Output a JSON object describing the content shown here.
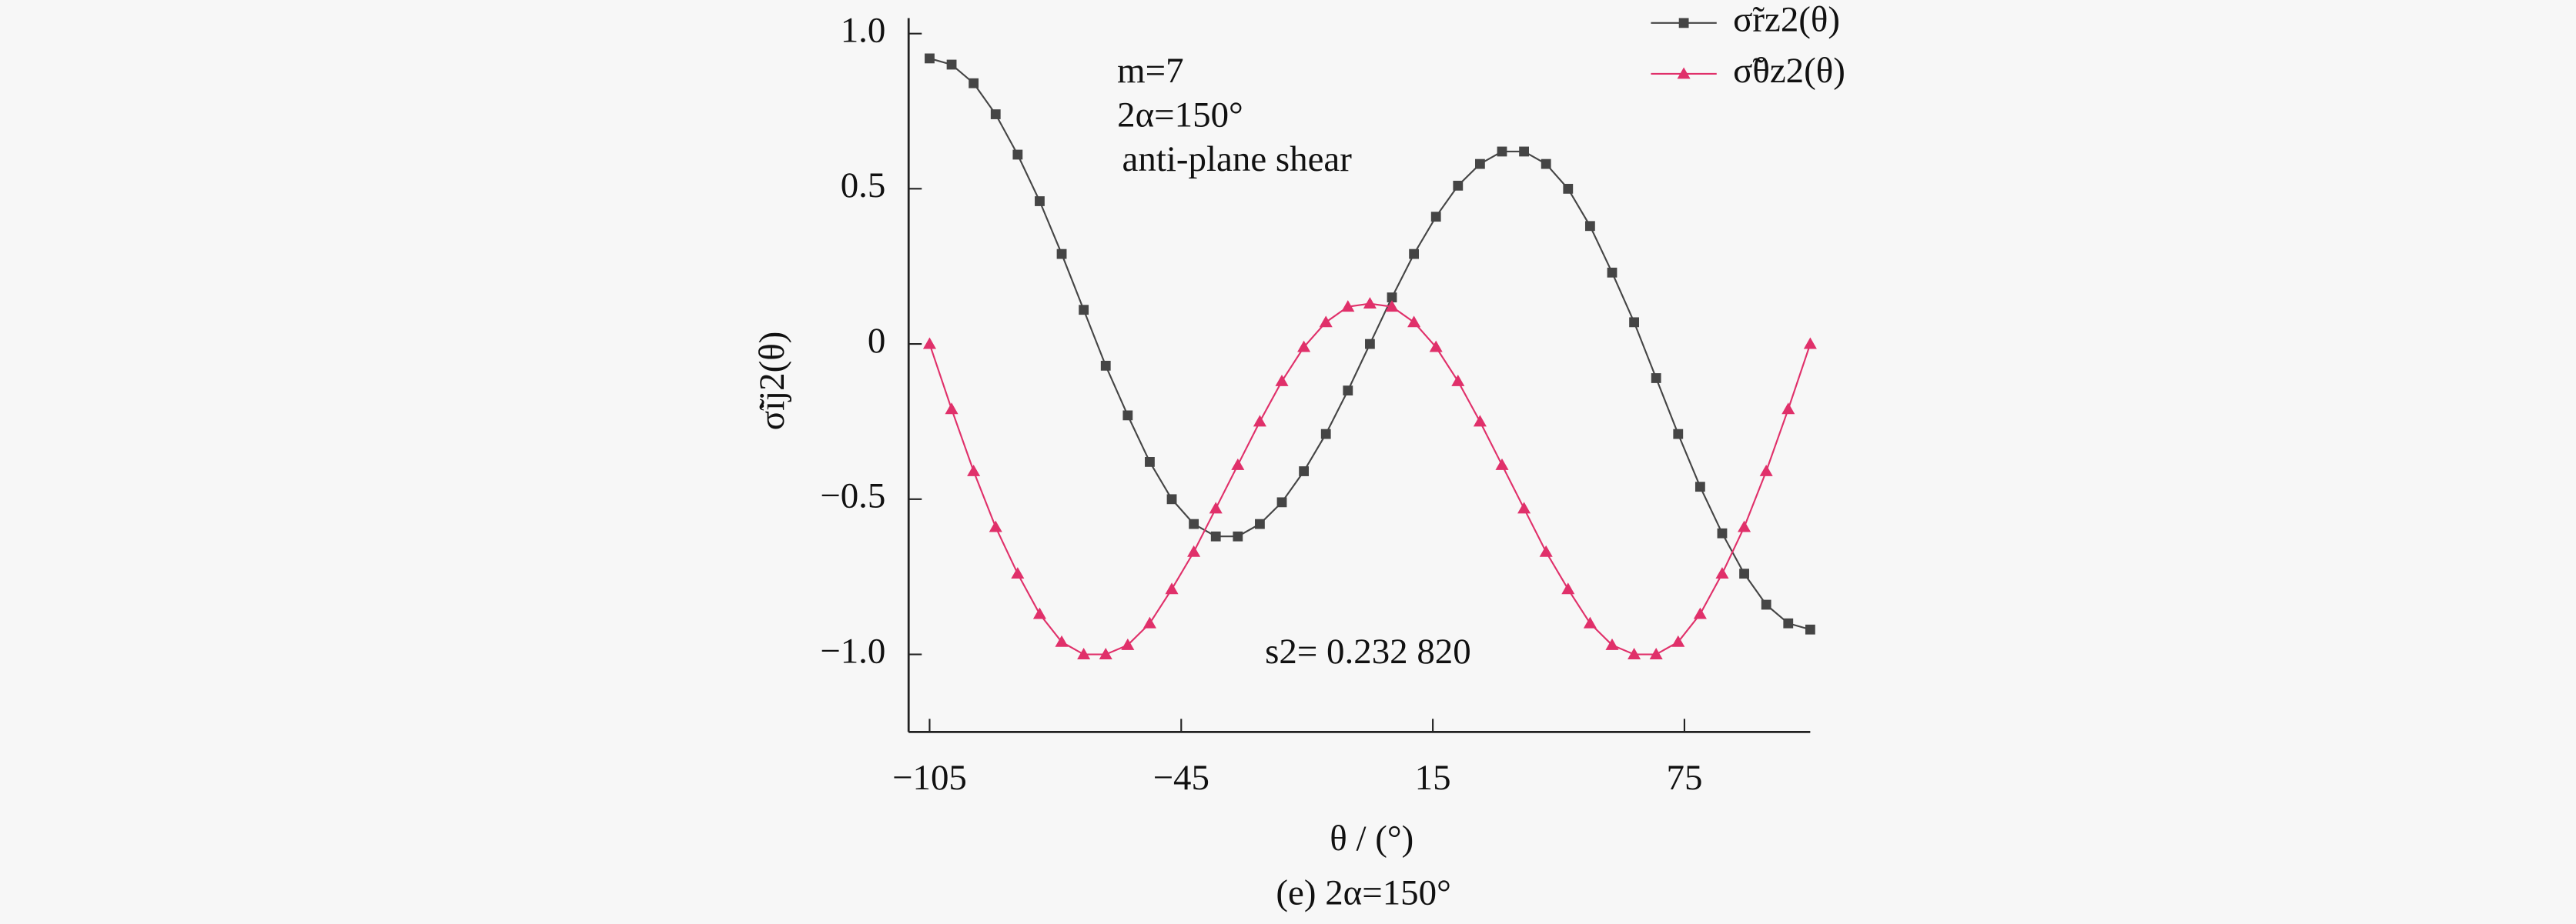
{
  "chart_data": {
    "type": "line",
    "x": [
      -105,
      -99.75,
      -94.5,
      -89.25,
      -84,
      -78.75,
      -73.5,
      -68.25,
      -63,
      -57.75,
      -52.5,
      -47.25,
      -42,
      -36.75,
      -31.5,
      -26.25,
      -21,
      -15.75,
      -10.5,
      -5.25,
      0,
      5.25,
      10.5,
      15.75,
      21,
      26.25,
      31.5,
      36.75,
      42,
      47.25,
      52.5,
      57.75,
      63,
      68.25,
      73.5,
      78.75,
      84,
      89.25,
      94.5,
      99.75,
      105
    ],
    "series": [
      {
        "name": "σ̃rz2(θ)",
        "color": "#454545",
        "marker": "square",
        "values": [
          0.92,
          0.9,
          0.84,
          0.74,
          0.61,
          0.46,
          0.29,
          0.11,
          -0.07,
          -0.23,
          -0.38,
          -0.5,
          -0.58,
          -0.62,
          -0.62,
          -0.58,
          -0.51,
          -0.41,
          -0.29,
          -0.15,
          0,
          0.15,
          0.29,
          0.41,
          0.51,
          0.58,
          0.62,
          0.62,
          0.58,
          0.5,
          0.38,
          0.23,
          0.07,
          -0.11,
          -0.29,
          -0.46,
          -0.61,
          -0.74,
          -0.84,
          -0.9,
          -0.92
        ]
      },
      {
        "name": "σ̃θz2(θ)",
        "color": "#e0306a",
        "marker": "triangle",
        "values": [
          0,
          -0.21,
          -0.41,
          -0.59,
          -0.74,
          -0.87,
          -0.96,
          -1.0,
          -1.0,
          -0.97,
          -0.9,
          -0.79,
          -0.67,
          -0.53,
          -0.39,
          -0.25,
          -0.12,
          -0.01,
          0.07,
          0.12,
          0.13,
          0.12,
          0.07,
          -0.01,
          -0.12,
          -0.25,
          -0.39,
          -0.53,
          -0.67,
          -0.79,
          -0.9,
          -0.97,
          -1.0,
          -1.0,
          -0.96,
          -0.87,
          -0.74,
          -0.59,
          -0.41,
          -0.21,
          0
        ]
      }
    ],
    "xlim": [
      -110,
      105
    ],
    "ylim": [
      -1.25,
      1.05
    ],
    "xticks": [
      {
        "value": -105,
        "label": "−105"
      },
      {
        "value": -45,
        "label": "−45"
      },
      15,
      75
    ],
    "yticks": [
      {
        "value": 1,
        "label": "1.0"
      },
      0.5,
      0,
      {
        "value": -0.5,
        "label": "−0.5"
      },
      {
        "value": -1,
        "label": "−1.0"
      }
    ],
    "xlabel": "θ / (°)",
    "ylabel": "σ̃ij2(θ)",
    "annotations": [
      "m=7",
      "2α=150°",
      "anti-plane shear",
      "s2= 0.232 820"
    ],
    "caption": "(e) 2α=150°",
    "legend": "upper right"
  }
}
